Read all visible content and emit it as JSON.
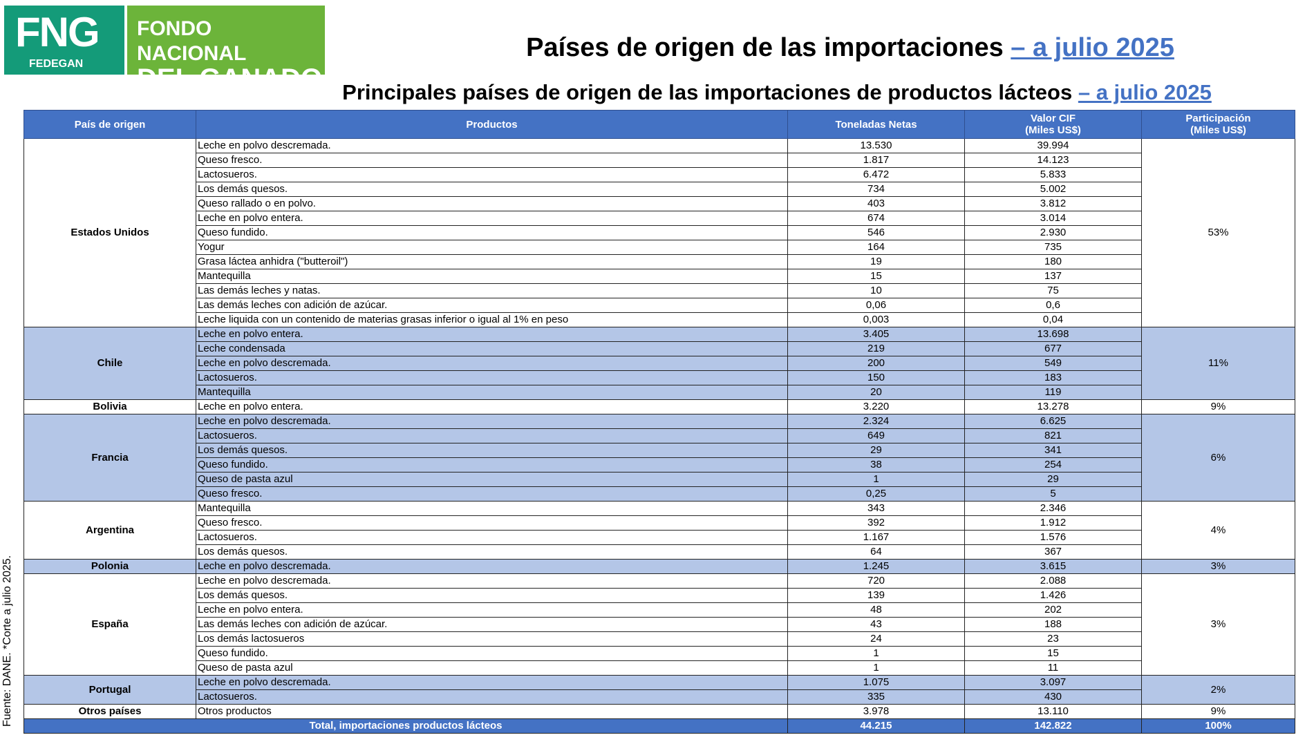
{
  "logo": {
    "mark": "FNG",
    "org": "FEDEGAN",
    "line1": "FONDO NACIONAL",
    "line2": "DEL GANADO"
  },
  "header": {
    "title": "Países de origen de las importaciones",
    "title_link": "– a julio 2025",
    "subtitle": "Principales países de origen de las importaciones de productos lácteos",
    "subtitle_link": "– a julio 2025"
  },
  "table": {
    "columns": [
      [
        "País de origen"
      ],
      [
        "Productos"
      ],
      [
        "Toneladas Netas"
      ],
      [
        "Valor  CIF",
        "(Miles US$)"
      ],
      [
        "Participación",
        "(Miles US$)"
      ]
    ],
    "groups": [
      {
        "country": "Estados Unidos",
        "share": "53%",
        "shaded": false,
        "rows": [
          [
            "Leche en polvo descremada.",
            "13.530",
            "39.994"
          ],
          [
            "Queso fresco.",
            "1.817",
            "14.123"
          ],
          [
            "Lactosueros.",
            "6.472",
            "5.833"
          ],
          [
            "Los demás quesos.",
            "734",
            "5.002"
          ],
          [
            "Queso rallado o en polvo.",
            "403",
            "3.812"
          ],
          [
            "Leche en polvo entera.",
            "674",
            "3.014"
          ],
          [
            "Queso fundido.",
            "546",
            "2.930"
          ],
          [
            "Yogur",
            "164",
            "735"
          ],
          [
            "Grasa láctea anhidra (\"butteroil\")",
            "19",
            "180"
          ],
          [
            "Mantequilla",
            "15",
            "137"
          ],
          [
            "Las demás leches y natas.",
            "10",
            "75"
          ],
          [
            "Las demás leches con adición de azúcar.",
            "0,06",
            "0,6"
          ],
          [
            "Leche liquida con un contenido de materias grasas inferior o igual al 1% en peso",
            "0,003",
            "0,04"
          ]
        ]
      },
      {
        "country": "Chile",
        "share": "11%",
        "shaded": true,
        "rows": [
          [
            "Leche en polvo entera.",
            "3.405",
            "13.698"
          ],
          [
            "Leche condensada",
            "219",
            "677"
          ],
          [
            "Leche en polvo descremada.",
            "200",
            "549"
          ],
          [
            "Lactosueros.",
            "150",
            "183"
          ],
          [
            "Mantequilla",
            "20",
            "119"
          ]
        ]
      },
      {
        "country": "Bolivia",
        "share": "9%",
        "shaded": false,
        "rows": [
          [
            "Leche en polvo entera.",
            "3.220",
            "13.278"
          ]
        ]
      },
      {
        "country": "Francia",
        "share": "6%",
        "shaded": true,
        "rows": [
          [
            "Leche en polvo descremada.",
            "2.324",
            "6.625"
          ],
          [
            "Lactosueros.",
            "649",
            "821"
          ],
          [
            "Los demás quesos.",
            "29",
            "341"
          ],
          [
            "Queso fundido.",
            "38",
            "254"
          ],
          [
            "Queso de pasta azul",
            "1",
            "29"
          ],
          [
            "Queso fresco.",
            "0,25",
            "5"
          ]
        ]
      },
      {
        "country": "Argentina",
        "share": "4%",
        "shaded": false,
        "rows": [
          [
            "Mantequilla",
            "343",
            "2.346"
          ],
          [
            "Queso fresco.",
            "392",
            "1.912"
          ],
          [
            "Lactosueros.",
            "1.167",
            "1.576"
          ],
          [
            "Los demás quesos.",
            "64",
            "367"
          ]
        ]
      },
      {
        "country": "Polonia",
        "share": "3%",
        "shaded": true,
        "rows": [
          [
            "Leche en polvo descremada.",
            "1.245",
            "3.615"
          ]
        ]
      },
      {
        "country": "España",
        "share": "3%",
        "shaded": false,
        "rows": [
          [
            "Leche en polvo descremada.",
            "720",
            "2.088"
          ],
          [
            "Los demás quesos.",
            "139",
            "1.426"
          ],
          [
            "Leche en polvo entera.",
            "48",
            "202"
          ],
          [
            "Las demás leches con adición de azúcar.",
            "43",
            "188"
          ],
          [
            "Los demás lactosueros",
            "24",
            "23"
          ],
          [
            "Queso fundido.",
            "1",
            "15"
          ],
          [
            "Queso de pasta azul",
            "1",
            "11"
          ]
        ]
      },
      {
        "country": "Portugal",
        "share": "2%",
        "shaded": true,
        "rows": [
          [
            "Leche en polvo descremada.",
            "1.075",
            "3.097"
          ],
          [
            "Lactosueros.",
            "335",
            "430"
          ]
        ]
      },
      {
        "country": "Otros países",
        "share": "9%",
        "shaded": false,
        "rows": [
          [
            "Otros productos",
            "3.978",
            "13.110"
          ]
        ]
      }
    ],
    "total": [
      "Total, importaciones productos lácteos",
      "44.215",
      "142.822",
      "100%"
    ]
  },
  "source": "Fuente: DANE. *Corte a julio 2025."
}
